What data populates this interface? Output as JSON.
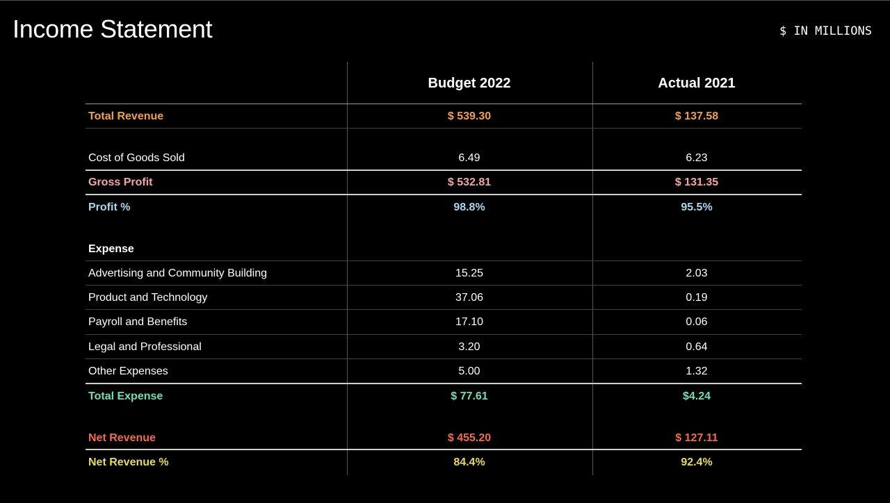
{
  "title": "Income Statement",
  "units": "$ IN MILLIONS",
  "colors": {
    "revenue": "#f0a04b",
    "gross_profit": "#f2a7a7",
    "profit_pct": "#a8d8ec",
    "total_expense": "#6ee0b8",
    "net_revenue": "#f26a4b",
    "net_revenue_pct": "#e6dc5a"
  },
  "columns": {
    "budget": "Budget 2022",
    "actual": "Actual 2021"
  },
  "rows": {
    "total_revenue": {
      "label": "Total Revenue",
      "budget": "$ 539.30",
      "actual": "$ 137.58"
    },
    "cogs": {
      "label": "Cost of Goods Sold",
      "budget": "6.49",
      "actual": "6.23"
    },
    "gross_profit": {
      "label": "Gross Profit",
      "budget": "$ 532.81",
      "actual": "$ 131.35"
    },
    "profit_pct": {
      "label": "Profit %",
      "budget": "98.8%",
      "actual": "95.5%"
    },
    "expense_header": {
      "label": "Expense"
    },
    "advertising": {
      "label": "Advertising and Community Building",
      "budget": "15.25",
      "actual": "2.03"
    },
    "product": {
      "label": "Product and Technology",
      "budget": "37.06",
      "actual": "0.19"
    },
    "payroll": {
      "label": "Payroll and Benefits",
      "budget": "17.10",
      "actual": "0.06"
    },
    "legal": {
      "label": "Legal and Professional",
      "budget": "3.20",
      "actual": "0.64"
    },
    "other": {
      "label": "Other Expenses",
      "budget": "5.00",
      "actual": "1.32"
    },
    "total_expense": {
      "label": "Total Expense",
      "budget": "$ 77.61",
      "actual": "$4.24"
    },
    "net_revenue": {
      "label": "Net Revenue",
      "budget": "$ 455.20",
      "actual": "$ 127.11"
    },
    "net_revenue_pct": {
      "label": "Net Revenue %",
      "budget": "84.4%",
      "actual": "92.4%"
    }
  }
}
